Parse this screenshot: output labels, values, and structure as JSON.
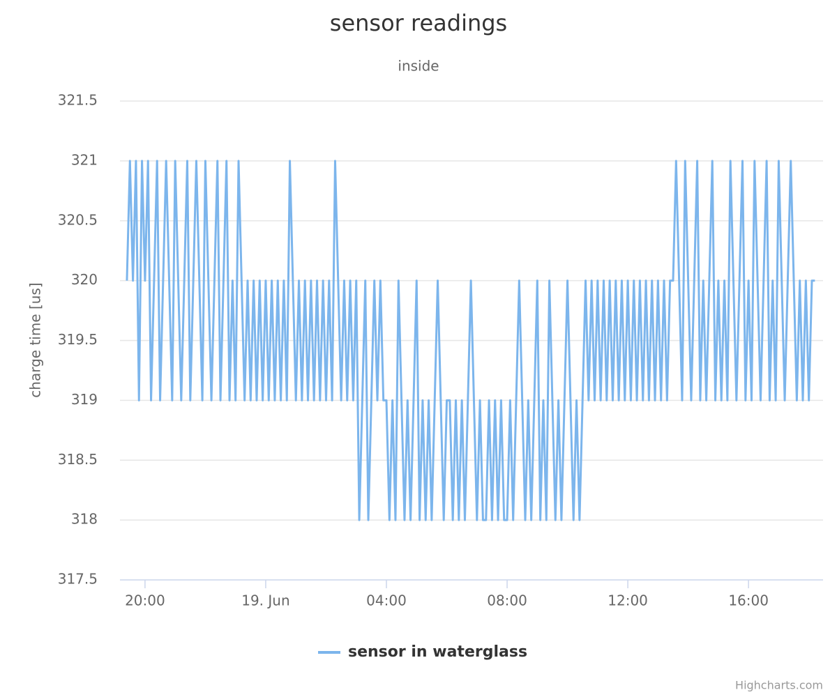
{
  "chart_data": {
    "type": "line",
    "title": "sensor readings",
    "subtitle": "inside",
    "y_label": "charge time [us]",
    "credits": "Highcharts.com",
    "x": [
      19.4,
      19.5,
      19.6,
      19.7,
      19.8,
      19.9,
      20,
      20.1,
      20.2,
      20.3,
      20.4,
      20.5,
      20.6,
      20.7,
      20.8,
      20.9,
      21,
      21.1,
      21.2,
      21.3,
      21.4,
      21.5,
      21.6,
      21.7,
      21.8,
      21.9,
      22,
      22.1,
      22.2,
      22.3,
      22.4,
      22.5,
      22.6,
      22.7,
      22.8,
      22.9,
      23,
      23.1,
      23.2,
      23.3,
      23.4,
      23.5,
      23.6,
      23.7,
      23.8,
      23.9,
      24,
      24.1,
      24.2,
      24.3,
      24.4,
      24.5,
      24.6,
      24.7,
      24.8,
      24.9,
      25,
      25.1,
      25.2,
      25.3,
      25.4,
      25.5,
      25.6,
      25.7,
      25.8,
      25.9,
      26,
      26.1,
      26.2,
      26.3,
      26.4,
      26.5,
      26.6,
      26.7,
      26.8,
      26.9,
      27,
      27.1,
      27.2,
      27.3,
      27.4,
      27.5,
      27.6,
      27.7,
      27.8,
      27.9,
      28,
      28.1,
      28.2,
      28.3,
      28.4,
      28.5,
      28.6,
      28.7,
      28.8,
      28.9,
      29,
      29.1,
      29.2,
      29.3,
      29.4,
      29.5,
      29.6,
      29.7,
      29.8,
      29.9,
      30,
      30.1,
      30.2,
      30.3,
      30.4,
      30.5,
      30.6,
      30.7,
      30.8,
      30.9,
      31,
      31.1,
      31.2,
      31.3,
      31.4,
      31.5,
      31.6,
      31.7,
      31.8,
      31.9,
      32,
      32.1,
      32.2,
      32.3,
      32.4,
      32.5,
      32.6,
      32.7,
      32.8,
      32.9,
      33,
      33.1,
      33.2,
      33.3,
      33.4,
      33.5,
      33.6,
      33.7,
      33.8,
      33.9,
      34,
      34.1,
      34.2,
      34.3,
      34.4,
      34.5,
      34.6,
      34.7,
      34.8,
      34.9,
      35,
      35.1,
      35.2,
      35.3,
      35.4,
      35.5,
      35.6,
      35.7,
      35.8,
      35.9,
      36,
      36.1,
      36.2,
      36.3,
      36.4,
      36.5,
      36.6,
      36.7,
      36.8,
      36.9,
      37,
      37.1,
      37.2,
      37.3,
      37.4,
      37.5,
      37.6,
      37.7,
      37.8,
      37.9,
      38,
      38.1,
      38.2,
      38.3,
      38.4,
      38.5,
      38.6,
      38.7,
      38.8,
      38.9,
      39,
      39.1,
      39.2,
      39.3,
      39.4,
      39.5,
      39.6,
      39.7,
      39.8,
      39.9,
      40,
      40.1,
      40.2,
      40.3,
      40.4,
      40.5,
      40.6,
      40.7,
      40.8,
      40.9,
      41,
      41.1,
      41.2,
      41.3,
      41.4,
      41.5,
      41.6,
      41.7,
      41.8,
      41.9,
      42,
      42.1,
      42.2
    ],
    "series": [
      {
        "name": "sensor in waterglass",
        "color": "#7cb5ec",
        "values": [
          320,
          321,
          320,
          321,
          319,
          321,
          320,
          321,
          319,
          320,
          321,
          319,
          320,
          321,
          320,
          319,
          321,
          320,
          319,
          320,
          321,
          319,
          320,
          321,
          320,
          319,
          321,
          320,
          319,
          320,
          321,
          319,
          320,
          321,
          319,
          320,
          319,
          321,
          320,
          319,
          320,
          319,
          320,
          319,
          320,
          319,
          320,
          319,
          320,
          319,
          320,
          319,
          320,
          319,
          321,
          320,
          319,
          320,
          319,
          320,
          319,
          320,
          319,
          320,
          319,
          320,
          319,
          320,
          319,
          321,
          320,
          319,
          320,
          319,
          320,
          319,
          320,
          318,
          319,
          320,
          318,
          319,
          320,
          319,
          320,
          319,
          319,
          318,
          319,
          318,
          320,
          319,
          318,
          319,
          318,
          319,
          320,
          318,
          319,
          318,
          319,
          318,
          319,
          320,
          319,
          318,
          319,
          319,
          318,
          319,
          318,
          319,
          318,
          319,
          320,
          319,
          318,
          319,
          318,
          318,
          319,
          318,
          319,
          318,
          319,
          318,
          318,
          319,
          318,
          319,
          320,
          319,
          318,
          319,
          318,
          319,
          320,
          318,
          319,
          318,
          320,
          319,
          318,
          319,
          318,
          319,
          320,
          319,
          318,
          319,
          318,
          319,
          320,
          319,
          320,
          319,
          320,
          319,
          320,
          319,
          320,
          319,
          320,
          319,
          320,
          319,
          320,
          319,
          320,
          319,
          320,
          319,
          320,
          319,
          320,
          319,
          320,
          319,
          320,
          319,
          320,
          320,
          321,
          320,
          319,
          321,
          320,
          319,
          320,
          321,
          319,
          320,
          319,
          320,
          321,
          319,
          320,
          319,
          320,
          319,
          321,
          320,
          319,
          320,
          321,
          319,
          320,
          319,
          321,
          320,
          319,
          320,
          321,
          319,
          320,
          319,
          321,
          320,
          319,
          320,
          321,
          320,
          319,
          320,
          319,
          320,
          319,
          320,
          320
        ]
      }
    ],
    "xlim": [
      19.17,
      42.47
    ],
    "xticks": [
      {
        "value": 20,
        "label": "20:00"
      },
      {
        "value": 24,
        "label": "19. Jun"
      },
      {
        "value": 28,
        "label": "04:00"
      },
      {
        "value": 32,
        "label": "08:00"
      },
      {
        "value": 36,
        "label": "12:00"
      },
      {
        "value": 40,
        "label": "16:00"
      }
    ],
    "ylim": [
      317.5,
      321.5
    ],
    "yticks": [
      317.5,
      318,
      318.5,
      319,
      319.5,
      320,
      320.5,
      321,
      321.5
    ],
    "grid": true,
    "legend": "bottom"
  }
}
